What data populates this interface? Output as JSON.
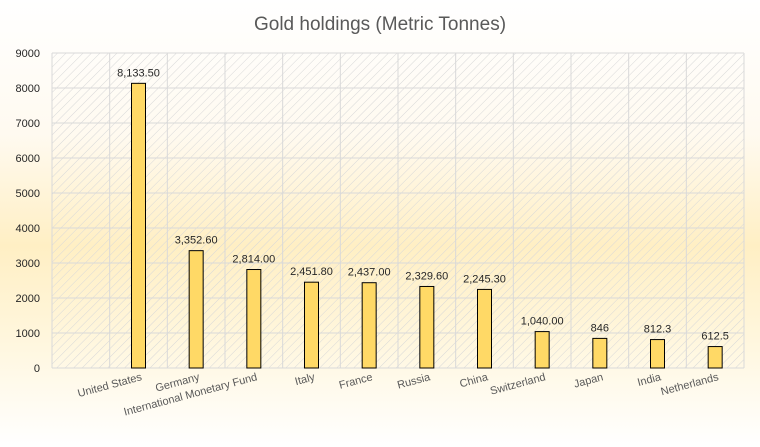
{
  "chart_data": {
    "type": "bar",
    "title": "Gold holdings (Metric Tonnes)",
    "xlabel": "",
    "ylabel": "",
    "ylim": [
      0,
      9000
    ],
    "yticks": [
      0,
      1000,
      2000,
      3000,
      4000,
      5000,
      6000,
      7000,
      8000,
      9000
    ],
    "categories": [
      "",
      "United States",
      "Germany",
      "International Monetary Fund",
      "Italy",
      "France",
      "Russia",
      "China",
      "Switzerland",
      "Japan",
      "India",
      "Netherlands"
    ],
    "values": [
      null,
      8133.5,
      3352.6,
      2814.0,
      2451.8,
      2437.0,
      2329.6,
      2245.3,
      1040.0,
      846,
      812.3,
      612.5
    ],
    "data_labels": [
      "",
      "8,133.50",
      "3,352.60",
      "2,814.00",
      "2,451.80",
      "2,437.00",
      "2,329.60",
      "2,245.30",
      "1,040.00",
      "846",
      "812.3",
      "612.5"
    ],
    "grid": true,
    "legend": false,
    "colors": {
      "bar": "#ffd966",
      "bar_border": "#000000",
      "title": "#595959"
    }
  }
}
